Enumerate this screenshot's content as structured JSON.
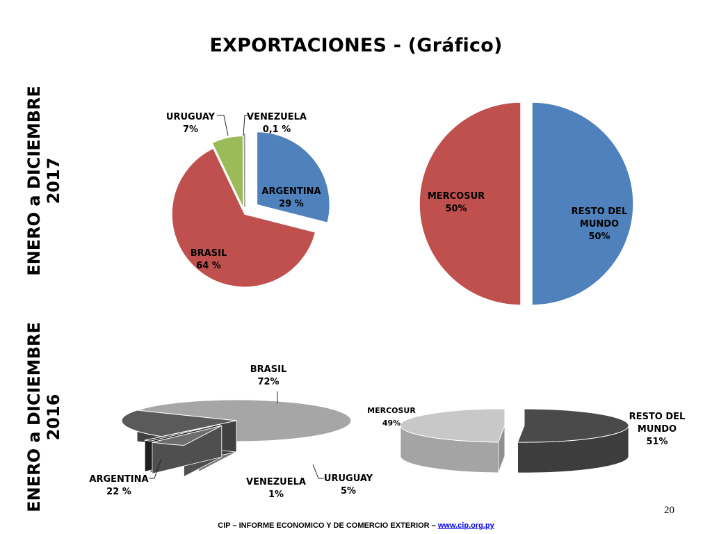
{
  "title": "EXPORTACIONES - (Gráfico)",
  "side_labels": {
    "top": [
      "ENERO a DICIEMBRE",
      "2017"
    ],
    "bottom": [
      "ENERO a DICIEMBRE",
      "2016"
    ]
  },
  "page_number": "20",
  "footer": {
    "text": "CIP – INFORME ECONOMICO Y DE COMERCIO EXTERIOR – ",
    "link": "www.cip.org.py"
  },
  "colors": {
    "blue": "#4f81bd",
    "red": "#c0504d",
    "green": "#9bbb59",
    "white_slice": "#ffffff"
  },
  "chart_data": [
    {
      "type": "pie",
      "period": "2017",
      "slices": [
        {
          "name": "ARGENTINA",
          "label": "29 %",
          "value": 29,
          "color": "#4f81bd"
        },
        {
          "name": "BRASIL",
          "label": "64 %",
          "value": 64,
          "color": "#c0504d"
        },
        {
          "name": "URUGUAY",
          "label": "7%",
          "value": 7,
          "color": "#9bbb59"
        },
        {
          "name": "VENEZUELA",
          "label": "0,1 %",
          "value": 0.1,
          "color": "#ffffff"
        }
      ]
    },
    {
      "type": "pie",
      "period": "2017",
      "slices": [
        {
          "name": "RESTO DEL MUNDO",
          "label": "50%",
          "value": 50,
          "color": "#4f81bd"
        },
        {
          "name": "MERCOSUR",
          "label": "50%",
          "value": 50,
          "color": "#c0504d"
        }
      ]
    },
    {
      "type": "pie",
      "period": "2016",
      "style": "3d",
      "slices": [
        {
          "name": "BRASIL",
          "label": "72%",
          "value": 72,
          "color": "#a6a6a6"
        },
        {
          "name": "URUGUAY",
          "label": "5%",
          "value": 5,
          "color": "#6e6e6e"
        },
        {
          "name": "VENEZUELA",
          "label": "1%",
          "value": 1,
          "color": "#2b2b2b"
        },
        {
          "name": "ARGENTINA",
          "label": "22 %",
          "value": 22,
          "color": "#5a5a5a"
        }
      ]
    },
    {
      "type": "pie",
      "period": "2016",
      "style": "3d",
      "slices": [
        {
          "name": "RESTO DEL MUNDO",
          "label": "51%",
          "value": 51,
          "color": "#4a4a4a"
        },
        {
          "name": "MERCOSUR",
          "label": "49%",
          "value": 49,
          "color": "#c8c8c8"
        }
      ]
    }
  ]
}
